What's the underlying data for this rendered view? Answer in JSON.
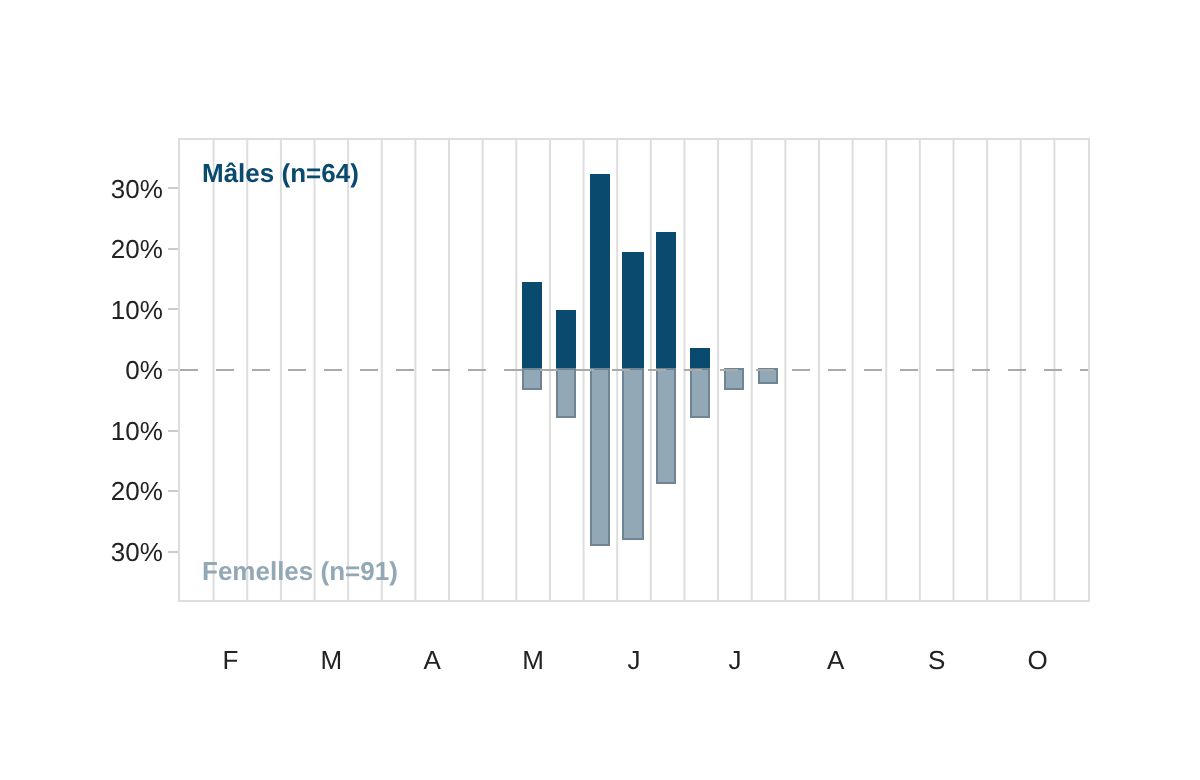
{
  "chart_data": {
    "type": "bar",
    "stacked": true,
    "categories": [
      null,
      "F",
      null,
      null,
      "M",
      null,
      null,
      "A",
      null,
      null,
      "M",
      null,
      null,
      "J",
      null,
      null,
      "J",
      null,
      null,
      "A",
      null,
      null,
      "S",
      null,
      null,
      "O",
      null
    ],
    "series": [
      {
        "name": "Mâles (n=64)",
        "color": "#0b4a6f",
        "values": [
          null,
          null,
          null,
          null,
          null,
          null,
          null,
          null,
          null,
          null,
          14.2,
          9.6,
          32,
          19.1,
          22.4,
          3.3,
          null,
          null,
          null,
          null,
          null,
          null,
          null,
          null,
          null,
          null,
          null
        ]
      },
      {
        "name": "Femelles (n=91)",
        "color": "#93a8b6",
        "values": [
          null,
          null,
          null,
          null,
          null,
          null,
          null,
          null,
          null,
          null,
          -3.3,
          -7.9,
          -29,
          -28,
          -18.8,
          -7.9,
          -3.3,
          -2.3,
          null,
          null,
          null,
          null,
          null,
          null,
          null,
          null,
          null
        ]
      }
    ],
    "ylim": [
      -38,
      38
    ],
    "yticks": [
      {
        "value": -30,
        "label": "30%"
      },
      {
        "value": -20,
        "label": "20%"
      },
      {
        "value": -10,
        "label": "10%"
      },
      {
        "value": 0,
        "label": "0%"
      },
      {
        "value": 10,
        "label": "10%"
      },
      {
        "value": 20,
        "label": "20%"
      },
      {
        "value": 30,
        "label": "30%"
      }
    ],
    "ref_lines": [
      {
        "axis": "y",
        "value": 0,
        "label": null,
        "color": "#aaaaaa",
        "line_style": "dashed"
      }
    ],
    "grid": "x"
  }
}
